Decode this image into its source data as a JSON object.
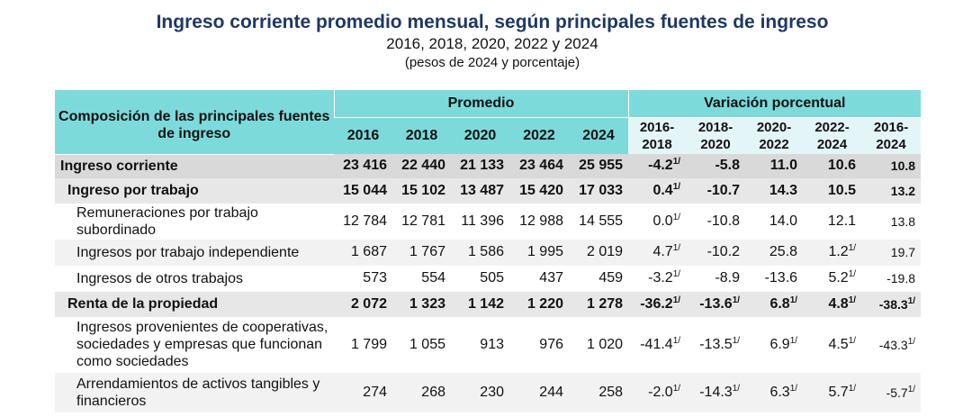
{
  "title": "Ingreso corriente promedio mensual, según principales fuentes de ingreso",
  "subtitle": "2016, 2018, 2020, 2022 y 2024",
  "units": "(pesos de 2024 y porcentaje)",
  "header": {
    "first_col": "Composición de las principales fuentes de ingreso",
    "group_promedio": "Promedio",
    "group_variacion": "Variación porcentual",
    "years": [
      "2016",
      "2018",
      "2020",
      "2022",
      "2024"
    ],
    "variation_periods": [
      {
        "a": "2016-",
        "b": "2018"
      },
      {
        "a": "2018-",
        "b": "2020"
      },
      {
        "a": "2020-",
        "b": "2022"
      },
      {
        "a": "2022-",
        "b": "2024"
      },
      {
        "a": "2016-",
        "b": "2024"
      }
    ]
  },
  "footnote_mark": "1/",
  "rows": [
    {
      "label": "Ingreso corriente",
      "values": [
        "23 416",
        "22 440",
        "21 133",
        "23 464",
        "25 955"
      ],
      "variations": [
        "-4.2",
        "-5.8",
        "11.0",
        "10.6",
        "10.8"
      ],
      "marks": [
        true,
        false,
        false,
        false,
        false
      ]
    },
    {
      "label": "Ingreso por trabajo",
      "values": [
        "15 044",
        "15 102",
        "13 487",
        "15 420",
        "17 033"
      ],
      "variations": [
        "0.4",
        "-10.7",
        "14.3",
        "10.5",
        "13.2"
      ],
      "marks": [
        true,
        false,
        false,
        false,
        false
      ]
    },
    {
      "label": "Remuneraciones por trabajo subordinado",
      "values": [
        "12 784",
        "12 781",
        "11 396",
        "12 988",
        "14 555"
      ],
      "variations": [
        "0.0",
        "-10.8",
        "14.0",
        "12.1",
        "13.8"
      ],
      "marks": [
        true,
        false,
        false,
        false,
        false
      ]
    },
    {
      "label": "Ingresos por trabajo independiente",
      "values": [
        "1 687",
        "1 767",
        "1 586",
        "1 995",
        "2 019"
      ],
      "variations": [
        "4.7",
        "-10.2",
        "25.8",
        "1.2",
        "19.7"
      ],
      "marks": [
        true,
        false,
        false,
        true,
        false
      ]
    },
    {
      "label": "Ingresos de otros trabajos",
      "values": [
        "573",
        "554",
        "505",
        "437",
        "459"
      ],
      "variations": [
        "-3.2",
        "-8.9",
        "-13.6",
        "5.2",
        "-19.8"
      ],
      "marks": [
        true,
        false,
        false,
        true,
        false
      ]
    },
    {
      "label": "Renta de la propiedad",
      "values": [
        "2 072",
        "1 323",
        "1 142",
        "1 220",
        "1 278"
      ],
      "variations": [
        "-36.2",
        "-13.6",
        "6.8",
        "4.8",
        "-38.3"
      ],
      "marks": [
        true,
        true,
        true,
        true,
        true
      ]
    },
    {
      "label": "Ingresos provenientes de cooperativas, sociedades y empresas que funcionan como sociedades",
      "values": [
        "1 799",
        "1 055",
        "913",
        "976",
        "1 020"
      ],
      "variations": [
        "-41.4",
        "-13.5",
        "6.9",
        "4.5",
        "-43.3"
      ],
      "marks": [
        true,
        true,
        true,
        true,
        true
      ]
    },
    {
      "label": "Arrendamientos de activos tangibles y financieros",
      "values": [
        "274",
        "268",
        "230",
        "244",
        "258"
      ],
      "variations": [
        "-2.0",
        "-14.3",
        "6.3",
        "5.7",
        "-5.7"
      ],
      "marks": [
        true,
        true,
        true,
        true,
        true
      ]
    }
  ]
}
